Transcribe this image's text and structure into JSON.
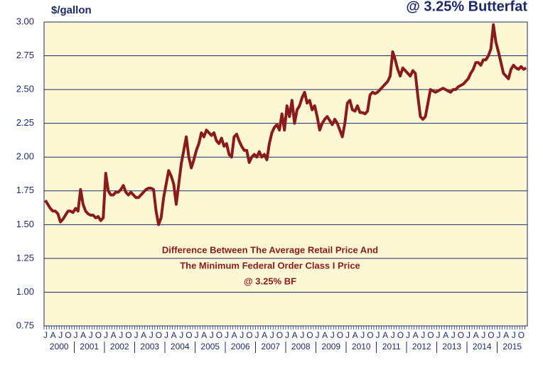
{
  "chart_data": {
    "type": "line",
    "title": "@ 3.25% Butterfat",
    "y_label": "$/gallon",
    "annotation": [
      "Difference Between The Average Retail Price And",
      "The Minimum Federal Order Class I Price",
      "@ 3.25% BF"
    ],
    "color": "#8b1a1a",
    "ylim": [
      0.75,
      3.0
    ],
    "yticks": [
      {
        "value": 0.75,
        "label": "0.75"
      },
      {
        "value": 1,
        "label": "1.00"
      },
      {
        "value": 1.25,
        "label": "1.25"
      },
      {
        "value": 1.5,
        "label": "1.50"
      },
      {
        "value": 1.75,
        "label": "1.75"
      },
      {
        "value": 2,
        "label": "2.00"
      },
      {
        "value": 2.25,
        "label": "2.25"
      },
      {
        "value": 2.5,
        "label": "2.50"
      },
      {
        "value": 2.75,
        "label": "2.75"
      },
      {
        "value": 3,
        "label": "3.00"
      }
    ],
    "grid": true,
    "year_labels": [
      "2000",
      "2001",
      "2002",
      "2003",
      "2004",
      "2005",
      "2006",
      "2007",
      "2008",
      "2009",
      "2010",
      "2011",
      "2012",
      "2013",
      "2014",
      "2015"
    ],
    "categories": [
      "J",
      null,
      null,
      "A",
      null,
      null,
      "J",
      null,
      null,
      "O",
      null,
      null,
      "J",
      null,
      null,
      "A",
      null,
      null,
      "J",
      null,
      null,
      "O",
      null,
      null,
      "J",
      null,
      null,
      "A",
      null,
      null,
      "J",
      null,
      null,
      "O",
      null,
      null,
      "J",
      null,
      null,
      "A",
      null,
      null,
      "J",
      null,
      null,
      "O",
      null,
      null,
      "J",
      null,
      null,
      "A",
      null,
      null,
      "J",
      null,
      null,
      "O",
      null,
      null,
      "J",
      null,
      null,
      "A",
      null,
      null,
      "J",
      null,
      null,
      "O",
      null,
      null,
      "J",
      null,
      null,
      "A",
      null,
      null,
      "J",
      null,
      null,
      "O",
      null,
      null,
      "J",
      null,
      null,
      "A",
      null,
      null,
      "J",
      null,
      null,
      "O",
      null,
      null,
      "J",
      null,
      null,
      "A",
      null,
      null,
      "J",
      null,
      null,
      "O",
      null,
      null,
      "J",
      null,
      null,
      "A",
      null,
      null,
      "J",
      null,
      null,
      "O",
      null,
      null,
      "J",
      null,
      null,
      "A",
      null,
      null,
      "J",
      null,
      null,
      "O",
      null,
      null,
      "J",
      null,
      null,
      "A",
      null,
      null,
      "J",
      null,
      null,
      "O",
      null,
      null,
      "J",
      null,
      null,
      "A",
      null,
      null,
      "J",
      null,
      null,
      "O",
      null,
      null,
      "J",
      null,
      null,
      "A",
      null,
      null,
      "J",
      null,
      null,
      "O",
      null,
      null,
      "J",
      null,
      null,
      "A",
      null,
      null,
      "J",
      null,
      null,
      "O",
      null,
      null,
      "J",
      null,
      null,
      "A",
      null,
      null,
      "J",
      null,
      null,
      "O",
      null,
      null
    ],
    "values": [
      1.68,
      1.65,
      1.62,
      1.6,
      1.6,
      1.58,
      1.52,
      1.54,
      1.57,
      1.6,
      1.6,
      1.59,
      1.62,
      1.6,
      1.76,
      1.65,
      1.6,
      1.58,
      1.57,
      1.57,
      1.55,
      1.56,
      1.53,
      1.55,
      1.88,
      1.75,
      1.72,
      1.72,
      1.74,
      1.74,
      1.76,
      1.79,
      1.74,
      1.72,
      1.74,
      1.72,
      1.7,
      1.7,
      1.72,
      1.74,
      1.76,
      1.77,
      1.77,
      1.76,
      1.6,
      1.5,
      1.55,
      1.7,
      1.8,
      1.9,
      1.86,
      1.8,
      1.65,
      1.8,
      1.95,
      2.05,
      2.15,
      2.0,
      1.92,
      1.98,
      2.05,
      2.1,
      2.18,
      2.15,
      2.2,
      2.18,
      2.16,
      2.18,
      2.12,
      2.1,
      2.14,
      2.08,
      2.1,
      2.02,
      2.0,
      2.15,
      2.17,
      2.12,
      2.08,
      2.05,
      2.05,
      1.96,
      2.0,
      2.02,
      2.0,
      2.04,
      2.0,
      2.02,
      1.98,
      2.1,
      2.18,
      2.22,
      2.24,
      2.2,
      2.32,
      2.2,
      2.38,
      2.3,
      2.42,
      2.25,
      2.35,
      2.38,
      2.44,
      2.48,
      2.4,
      2.42,
      2.35,
      2.38,
      2.3,
      2.2,
      2.25,
      2.28,
      2.3,
      2.27,
      2.24,
      2.28,
      2.25,
      2.2,
      2.15,
      2.25,
      2.4,
      2.42,
      2.35,
      2.34,
      2.38,
      2.33,
      2.33,
      2.32,
      2.34,
      2.46,
      2.48,
      2.47,
      2.48,
      2.5,
      2.52,
      2.54,
      2.56,
      2.6,
      2.78,
      2.72,
      2.65,
      2.6,
      2.66,
      2.64,
      2.62,
      2.6,
      2.64,
      2.62,
      2.45,
      2.3,
      2.28,
      2.3,
      2.4,
      2.5,
      2.49,
      2.48,
      2.49,
      2.5,
      2.51,
      2.5,
      2.49,
      2.48,
      2.5,
      2.5,
      2.52,
      2.53,
      2.54,
      2.56,
      2.58,
      2.62,
      2.65,
      2.7,
      2.7,
      2.68,
      2.72,
      2.72,
      2.75,
      2.8,
      2.98,
      2.85,
      2.78,
      2.7,
      2.62,
      2.6,
      2.58,
      2.65,
      2.68,
      2.66,
      2.65,
      2.67,
      2.65,
      2.66
    ]
  }
}
